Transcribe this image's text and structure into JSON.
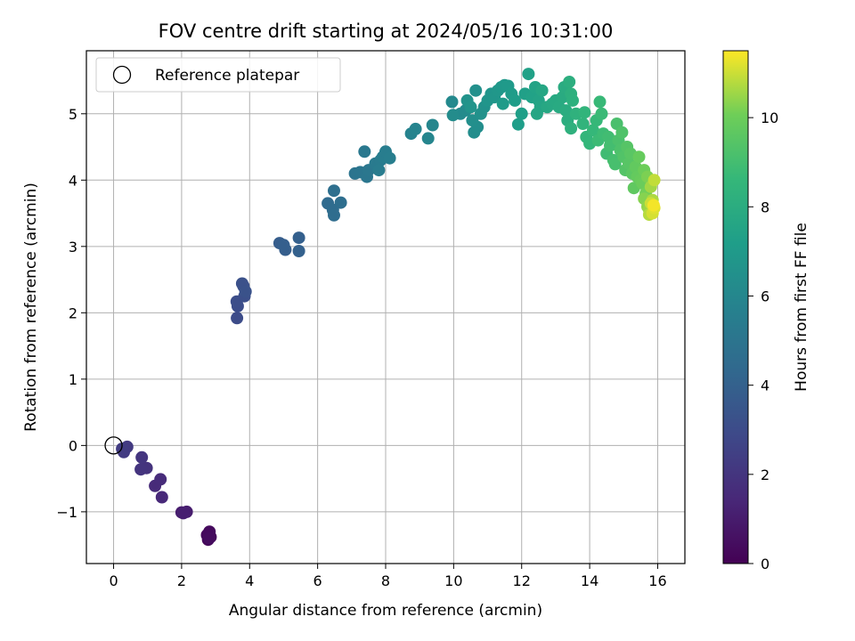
{
  "chart_data": {
    "type": "scatter",
    "title": "FOV centre drift starting at 2024/05/16 10:31:00",
    "xlabel": "Angular distance from reference (arcmin)",
    "ylabel": "Rotation from reference (arcmin)",
    "xlim": [
      -0.8,
      16.8
    ],
    "ylim": [
      -1.78,
      5.95
    ],
    "xticks": [
      0,
      2,
      4,
      6,
      8,
      10,
      12,
      14,
      16
    ],
    "yticks": [
      -1,
      0,
      1,
      2,
      3,
      4,
      5
    ],
    "xtick_labels": [
      "0",
      "2",
      "4",
      "6",
      "8",
      "10",
      "12",
      "14",
      "16"
    ],
    "ytick_labels": [
      "−1",
      "0",
      "1",
      "2",
      "3",
      "4",
      "5"
    ],
    "grid": true,
    "legend": {
      "placement": "top-left",
      "entries": [
        "Reference platepar"
      ]
    },
    "reference_point": {
      "x": 0,
      "y": 0,
      "label": "Reference platepar"
    },
    "colorbar": {
      "label": "Hours from first FF file",
      "colormap": "viridis",
      "range": [
        0,
        11.5
      ],
      "ticks": [
        0,
        2,
        4,
        6,
        8,
        10
      ],
      "tick_labels": [
        "0",
        "2",
        "4",
        "6",
        "8",
        "10"
      ]
    },
    "points": [
      [
        2.78,
        -1.42,
        0.2
      ],
      [
        2.85,
        -1.38,
        0.25
      ],
      [
        2.75,
        -1.35,
        0.3
      ],
      [
        2.82,
        -1.3,
        0.35
      ],
      [
        2.8,
        -1.4,
        0.4
      ],
      [
        2.0,
        -1.01,
        1.0
      ],
      [
        2.15,
        -1.0,
        1.05
      ],
      [
        2.05,
        -1.02,
        1.1
      ],
      [
        1.42,
        -0.78,
        1.5
      ],
      [
        1.22,
        -0.61,
        1.55
      ],
      [
        1.38,
        -0.51,
        1.6
      ],
      [
        0.97,
        -0.34,
        1.9
      ],
      [
        0.8,
        -0.36,
        1.95
      ],
      [
        0.83,
        -0.18,
        2.0
      ],
      [
        0.4,
        -0.02,
        2.2
      ],
      [
        0.3,
        -0.1,
        2.25
      ],
      [
        0.25,
        -0.05,
        2.3
      ],
      [
        3.63,
        1.92,
        3.0
      ],
      [
        3.65,
        2.1,
        3.05
      ],
      [
        3.62,
        2.17,
        3.1
      ],
      [
        3.85,
        2.25,
        3.15
      ],
      [
        3.82,
        2.4,
        3.2
      ],
      [
        3.78,
        2.44,
        3.25
      ],
      [
        3.88,
        2.32,
        3.3
      ],
      [
        4.88,
        3.05,
        3.8
      ],
      [
        5.05,
        2.95,
        3.85
      ],
      [
        5.0,
        3.02,
        3.9
      ],
      [
        5.45,
        3.13,
        3.95
      ],
      [
        5.45,
        2.93,
        4.0
      ],
      [
        6.3,
        3.65,
        4.5
      ],
      [
        6.45,
        3.55,
        4.55
      ],
      [
        6.48,
        3.47,
        4.6
      ],
      [
        6.68,
        3.66,
        4.65
      ],
      [
        6.48,
        3.84,
        4.7
      ],
      [
        7.1,
        4.1,
        5.0
      ],
      [
        7.25,
        4.12,
        5.05
      ],
      [
        7.45,
        4.05,
        5.1
      ],
      [
        7.5,
        4.15,
        5.15
      ],
      [
        7.38,
        4.43,
        5.2
      ],
      [
        7.7,
        4.25,
        5.3
      ],
      [
        7.85,
        4.3,
        5.35
      ],
      [
        7.8,
        4.15,
        5.4
      ],
      [
        7.92,
        4.35,
        5.45
      ],
      [
        8.0,
        4.43,
        5.5
      ],
      [
        8.12,
        4.33,
        5.55
      ],
      [
        8.75,
        4.7,
        5.8
      ],
      [
        8.88,
        4.77,
        5.85
      ],
      [
        9.25,
        4.63,
        5.9
      ],
      [
        9.38,
        4.83,
        5.95
      ],
      [
        9.95,
        5.18,
        6.1
      ],
      [
        10.2,
        5.0,
        6.15
      ],
      [
        10.35,
        5.05,
        6.2
      ],
      [
        9.98,
        4.98,
        6.25
      ],
      [
        10.6,
        4.72,
        6.3
      ],
      [
        10.7,
        4.8,
        6.35
      ],
      [
        10.55,
        4.9,
        6.4
      ],
      [
        10.65,
        5.35,
        6.45
      ],
      [
        10.8,
        5.0,
        6.5
      ],
      [
        10.9,
        5.1,
        6.55
      ],
      [
        10.4,
        5.2,
        6.6
      ],
      [
        10.5,
        5.1,
        6.65
      ],
      [
        11.0,
        5.2,
        6.7
      ],
      [
        11.1,
        5.3,
        6.75
      ],
      [
        11.2,
        5.25,
        6.8
      ],
      [
        11.3,
        5.35,
        6.85
      ],
      [
        11.4,
        5.4,
        6.9
      ],
      [
        11.5,
        5.43,
        6.95
      ],
      [
        11.6,
        5.42,
        7.0
      ],
      [
        11.45,
        5.15,
        7.05
      ],
      [
        11.7,
        5.3,
        7.1
      ],
      [
        11.8,
        5.2,
        7.15
      ],
      [
        11.9,
        4.84,
        7.2
      ],
      [
        12.0,
        5.0,
        7.25
      ],
      [
        12.1,
        5.3,
        7.3
      ],
      [
        12.2,
        5.6,
        7.35
      ],
      [
        12.3,
        5.25,
        7.4
      ],
      [
        12.4,
        5.4,
        7.45
      ],
      [
        12.5,
        5.2,
        7.5
      ],
      [
        12.55,
        5.1,
        7.55
      ],
      [
        12.45,
        5.0,
        7.6
      ],
      [
        12.6,
        5.35,
        7.65
      ],
      [
        12.75,
        5.1,
        7.7
      ],
      [
        12.9,
        5.15,
        7.75
      ],
      [
        13.0,
        5.2,
        7.8
      ],
      [
        13.1,
        5.1,
        7.85
      ],
      [
        13.2,
        5.25,
        7.9
      ],
      [
        13.25,
        5.4,
        7.95
      ],
      [
        13.3,
        5.05,
        8.0
      ],
      [
        13.35,
        4.9,
        8.05
      ],
      [
        13.4,
        5.48,
        8.1
      ],
      [
        13.45,
        5.3,
        8.15
      ],
      [
        13.5,
        5.2,
        8.2
      ],
      [
        13.45,
        4.78,
        8.25
      ],
      [
        13.6,
        5.0,
        8.3
      ],
      [
        13.8,
        4.85,
        8.4
      ],
      [
        13.85,
        5.02,
        8.45
      ],
      [
        13.9,
        4.65,
        8.5
      ],
      [
        14.0,
        4.55,
        8.55
      ],
      [
        14.1,
        4.75,
        8.6
      ],
      [
        14.2,
        4.9,
        8.65
      ],
      [
        14.3,
        5.18,
        8.7
      ],
      [
        14.35,
        5.0,
        8.75
      ],
      [
        14.25,
        4.6,
        8.8
      ],
      [
        14.4,
        4.7,
        8.85
      ],
      [
        14.5,
        4.4,
        8.9
      ],
      [
        14.55,
        4.65,
        8.95
      ],
      [
        14.6,
        4.52,
        9.0
      ],
      [
        14.7,
        4.3,
        9.05
      ],
      [
        14.75,
        4.24,
        9.1
      ],
      [
        14.8,
        4.85,
        9.15
      ],
      [
        14.85,
        4.6,
        9.2
      ],
      [
        14.9,
        4.45,
        9.25
      ],
      [
        14.95,
        4.72,
        9.3
      ],
      [
        15.0,
        4.35,
        9.35
      ],
      [
        15.05,
        4.15,
        9.4
      ],
      [
        15.1,
        4.5,
        9.45
      ],
      [
        15.15,
        4.25,
        9.5
      ],
      [
        15.2,
        4.4,
        9.55
      ],
      [
        15.25,
        4.1,
        9.6
      ],
      [
        15.3,
        3.88,
        9.7
      ],
      [
        15.35,
        4.2,
        9.75
      ],
      [
        15.4,
        4.05,
        9.8
      ],
      [
        15.45,
        4.35,
        9.85
      ],
      [
        15.5,
        4.0,
        9.9
      ],
      [
        15.55,
        3.95,
        9.95
      ],
      [
        15.6,
        4.15,
        10.0
      ],
      [
        15.65,
        3.8,
        10.1
      ],
      [
        15.7,
        4.05,
        10.2
      ],
      [
        15.6,
        3.72,
        10.3
      ],
      [
        15.7,
        3.6,
        10.4
      ],
      [
        15.75,
        3.55,
        10.5
      ],
      [
        15.8,
        3.9,
        10.6
      ],
      [
        15.85,
        3.7,
        10.7
      ],
      [
        15.75,
        3.48,
        10.8
      ],
      [
        15.9,
        4.0,
        10.9
      ],
      [
        15.8,
        3.65,
        11.0
      ],
      [
        15.85,
        3.5,
        11.1
      ],
      [
        15.9,
        3.58,
        11.2
      ],
      [
        15.88,
        3.62,
        11.4
      ]
    ]
  }
}
